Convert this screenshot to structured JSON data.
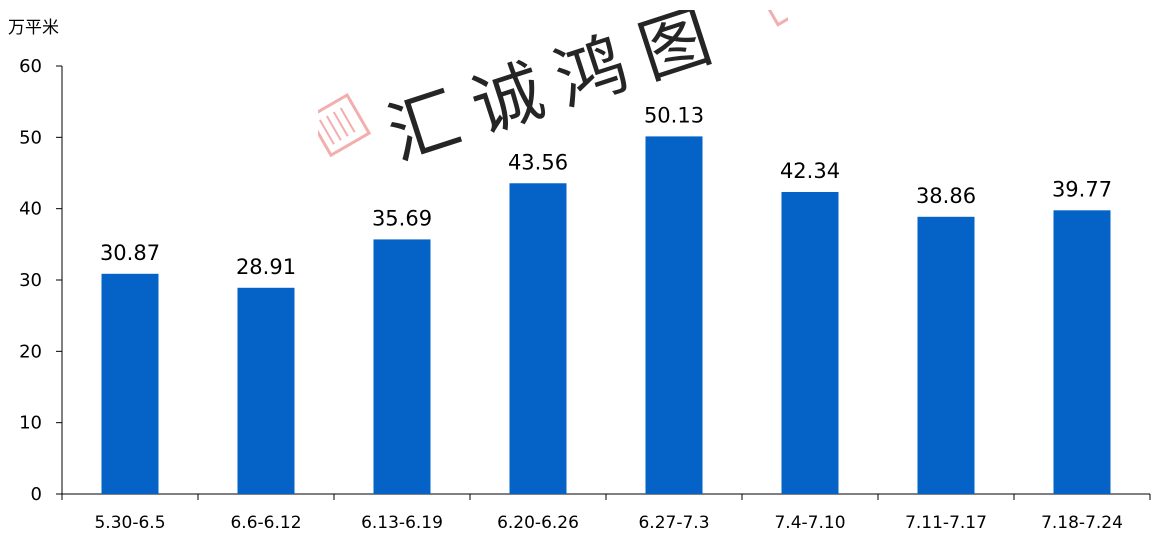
{
  "chart_data": {
    "type": "bar",
    "unit": "万平米",
    "categories": [
      "5.30-6.5",
      "6.6-6.12",
      "6.13-6.19",
      "6.20-6.26",
      "6.27-7.3",
      "7.4-7.10",
      "7.11-7.17",
      "7.18-7.24"
    ],
    "values": [
      30.87,
      28.91,
      35.69,
      43.56,
      50.13,
      42.34,
      38.86,
      39.77
    ],
    "data_labels": [
      "30.87",
      "28.91",
      "35.69",
      "43.56",
      "50.13",
      "42.34",
      "38.86",
      "39.77"
    ],
    "ylim": [
      0,
      60
    ],
    "yticks": [
      0,
      10,
      20,
      30,
      40,
      50,
      60
    ],
    "bar_color": "#0563C8",
    "grid": false,
    "legend": "none"
  },
  "watermark": {
    "text": "汇诚鸿图",
    "color": "#F2A0A0"
  }
}
